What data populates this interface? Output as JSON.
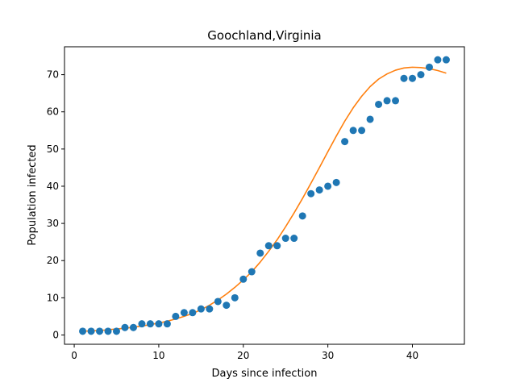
{
  "chart_data": {
    "type": "scatter",
    "title": "Goochland,Virginia",
    "xlabel": "Days since infection",
    "ylabel": "Population infected",
    "xlim": [
      -1.15,
      46.15
    ],
    "ylim": [
      -2.5,
      77.5
    ],
    "xticks": [
      0,
      10,
      20,
      30,
      40
    ],
    "yticks": [
      0,
      10,
      20,
      30,
      40,
      50,
      60,
      70
    ],
    "grid": false,
    "series": [
      {
        "kind": "scatter",
        "color": "#1f77b4",
        "x": [
          1,
          2,
          3,
          4,
          5,
          6,
          7,
          8,
          9,
          10,
          11,
          12,
          13,
          14,
          15,
          16,
          17,
          18,
          19,
          20,
          21,
          22,
          23,
          24,
          25,
          26,
          27,
          28,
          29,
          30,
          31,
          32,
          33,
          34,
          35,
          36,
          37,
          38,
          39,
          40,
          41,
          42,
          43,
          44
        ],
        "y": [
          1,
          1,
          1,
          1,
          1,
          2,
          2,
          3,
          3,
          3,
          3,
          5,
          6,
          6,
          7,
          7,
          9,
          8,
          10,
          15,
          17,
          22,
          24,
          24,
          26,
          26,
          32,
          38,
          39,
          40,
          41,
          52,
          55,
          55,
          58,
          62,
          63,
          63,
          69,
          69,
          70,
          72,
          74,
          74
        ]
      },
      {
        "kind": "line",
        "color": "#ff7f0e",
        "x": [
          1,
          2,
          3,
          4,
          5,
          6,
          7,
          8,
          9,
          10,
          11,
          12,
          13,
          14,
          15,
          16,
          17,
          18,
          19,
          20,
          21,
          22,
          23,
          24,
          25,
          26,
          27,
          28,
          29,
          30,
          31,
          32,
          33,
          34,
          35,
          36,
          37,
          38,
          39,
          40,
          41,
          42,
          43,
          44
        ],
        "y": [
          1.0,
          1.1,
          1.2,
          1.4,
          1.6,
          1.8,
          2.1,
          2.4,
          2.8,
          3.2,
          3.7,
          4.3,
          5.0,
          5.8,
          6.8,
          8.0,
          9.4,
          11.0,
          12.8,
          14.8,
          17.0,
          19.6,
          22.5,
          25.6,
          29.1,
          32.8,
          36.7,
          40.8,
          45.0,
          49.3,
          53.5,
          57.5,
          61.1,
          64.2,
          66.8,
          68.8,
          70.2,
          71.2,
          71.8,
          72.0,
          71.9,
          71.6,
          71.1,
          70.4
        ]
      }
    ]
  }
}
